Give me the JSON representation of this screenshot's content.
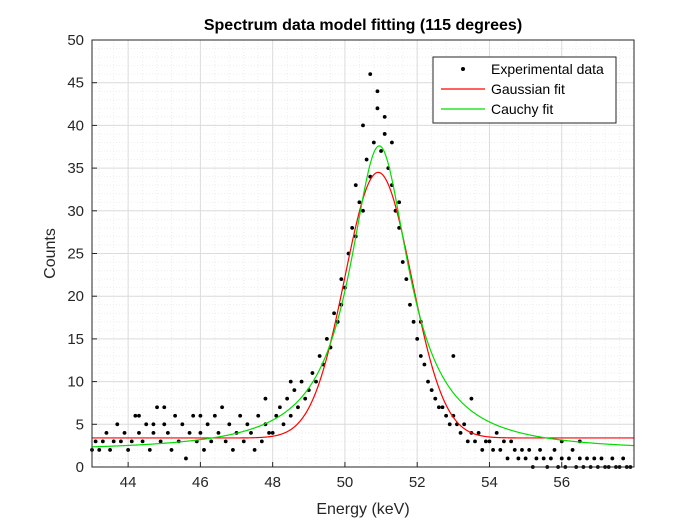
{
  "chart_data": {
    "type": "scatter",
    "title": "Spectrum data model fitting (115 degrees)",
    "xlabel": "Energy (keV)",
    "ylabel": "Counts",
    "xlim": [
      43,
      58
    ],
    "ylim": [
      0,
      50
    ],
    "xticks": [
      44,
      46,
      48,
      50,
      52,
      54,
      56
    ],
    "yticks": [
      0,
      5,
      10,
      15,
      20,
      25,
      30,
      35,
      40,
      45,
      50
    ],
    "grid": true,
    "minor_grid": true,
    "legend_position": "top-right",
    "colors": {
      "experimental": "#000000",
      "gaussian": "#ff0000",
      "cauchy": "#00dd00",
      "grid": "#dcdcdc",
      "axis": "#262626"
    },
    "series": [
      {
        "name": "Experimental data",
        "kind": "points",
        "points": [
          [
            43.0,
            2
          ],
          [
            43.1,
            3
          ],
          [
            43.2,
            2
          ],
          [
            43.3,
            3
          ],
          [
            43.4,
            4
          ],
          [
            43.5,
            2
          ],
          [
            43.6,
            3
          ],
          [
            43.7,
            5
          ],
          [
            43.8,
            3
          ],
          [
            43.9,
            4
          ],
          [
            44.0,
            2
          ],
          [
            44.1,
            3
          ],
          [
            44.2,
            6
          ],
          [
            44.3,
            4
          ],
          [
            44.4,
            3
          ],
          [
            44.5,
            5
          ],
          [
            44.6,
            2
          ],
          [
            44.7,
            4
          ],
          [
            44.8,
            7
          ],
          [
            44.9,
            3
          ],
          [
            45.0,
            5
          ],
          [
            45.1,
            4
          ],
          [
            45.2,
            2
          ],
          [
            45.3,
            6
          ],
          [
            45.4,
            3
          ],
          [
            45.5,
            5
          ],
          [
            45.6,
            1
          ],
          [
            45.7,
            4
          ],
          [
            45.8,
            6
          ],
          [
            45.9,
            3
          ],
          [
            46.0,
            4
          ],
          [
            46.1,
            2
          ],
          [
            46.2,
            5
          ],
          [
            46.3,
            3
          ],
          [
            46.4,
            6
          ],
          [
            46.5,
            4
          ],
          [
            46.6,
            7
          ],
          [
            46.7,
            3
          ],
          [
            46.8,
            5
          ],
          [
            46.9,
            2
          ],
          [
            47.0,
            4
          ],
          [
            47.1,
            6
          ],
          [
            47.2,
            3
          ],
          [
            47.3,
            5
          ],
          [
            47.4,
            4
          ],
          [
            47.5,
            2
          ],
          [
            47.6,
            6
          ],
          [
            47.7,
            3
          ],
          [
            47.8,
            5
          ],
          [
            47.9,
            4
          ],
          [
            48.0,
            4
          ],
          [
            48.1,
            6
          ],
          [
            48.2,
            7
          ],
          [
            48.3,
            5
          ],
          [
            48.4,
            8
          ],
          [
            48.5,
            6
          ],
          [
            48.6,
            9
          ],
          [
            48.7,
            7
          ],
          [
            48.8,
            10
          ],
          [
            48.9,
            8
          ],
          [
            49.0,
            9
          ],
          [
            49.1,
            11
          ],
          [
            49.2,
            10
          ],
          [
            49.3,
            13
          ],
          [
            49.4,
            12
          ],
          [
            49.5,
            15
          ],
          [
            49.6,
            14
          ],
          [
            49.7,
            18
          ],
          [
            49.8,
            17
          ],
          [
            49.9,
            22
          ],
          [
            50.0,
            21
          ],
          [
            50.1,
            25
          ],
          [
            50.2,
            28
          ],
          [
            50.3,
            27
          ],
          [
            50.4,
            31
          ],
          [
            50.5,
            30
          ],
          [
            50.6,
            36
          ],
          [
            50.7,
            34
          ],
          [
            50.8,
            38
          ],
          [
            50.9,
            42
          ],
          [
            51.0,
            37
          ],
          [
            51.1,
            39
          ],
          [
            51.2,
            35
          ],
          [
            51.3,
            33
          ],
          [
            51.4,
            30
          ],
          [
            51.5,
            28
          ],
          [
            51.6,
            24
          ],
          [
            51.7,
            22
          ],
          [
            51.8,
            19
          ],
          [
            51.9,
            17
          ],
          [
            52.0,
            15
          ],
          [
            52.1,
            13
          ],
          [
            52.2,
            12
          ],
          [
            52.3,
            10
          ],
          [
            52.4,
            9
          ],
          [
            52.5,
            8
          ],
          [
            52.6,
            7
          ],
          [
            52.7,
            7
          ],
          [
            52.8,
            6
          ],
          [
            52.9,
            5
          ],
          [
            53.0,
            6
          ],
          [
            53.1,
            5
          ],
          [
            53.2,
            4
          ],
          [
            53.3,
            5
          ],
          [
            53.4,
            3
          ],
          [
            53.5,
            4
          ],
          [
            53.6,
            3
          ],
          [
            53.7,
            4
          ],
          [
            53.8,
            2
          ],
          [
            53.9,
            3
          ],
          [
            54.0,
            3
          ],
          [
            54.1,
            2
          ],
          [
            54.2,
            4
          ],
          [
            54.3,
            2
          ],
          [
            54.4,
            3
          ],
          [
            54.5,
            1
          ],
          [
            54.6,
            3
          ],
          [
            54.7,
            2
          ],
          [
            54.8,
            1
          ],
          [
            54.9,
            2
          ],
          [
            55.0,
            1
          ],
          [
            55.1,
            2
          ],
          [
            55.2,
            0
          ],
          [
            55.3,
            1
          ],
          [
            55.4,
            2
          ],
          [
            55.5,
            1
          ],
          [
            55.6,
            0
          ],
          [
            55.7,
            1
          ],
          [
            55.8,
            2
          ],
          [
            55.9,
            0
          ],
          [
            56.0,
            1
          ],
          [
            56.1,
            0
          ],
          [
            56.2,
            1
          ],
          [
            56.3,
            2
          ],
          [
            56.4,
            0
          ],
          [
            56.5,
            1
          ],
          [
            56.6,
            0
          ],
          [
            56.7,
            1
          ],
          [
            56.8,
            0
          ],
          [
            56.9,
            1
          ],
          [
            57.0,
            0
          ],
          [
            57.1,
            1
          ],
          [
            57.2,
            0
          ],
          [
            57.3,
            0
          ],
          [
            57.4,
            1
          ],
          [
            57.5,
            0
          ],
          [
            57.6,
            0
          ],
          [
            57.7,
            1
          ],
          [
            57.8,
            0
          ],
          [
            57.9,
            0
          ],
          [
            50.7,
            46
          ],
          [
            50.9,
            44
          ],
          [
            51.1,
            41
          ],
          [
            50.5,
            40
          ],
          [
            51.3,
            38
          ],
          [
            50.3,
            33
          ],
          [
            51.5,
            31
          ],
          [
            49.9,
            19
          ],
          [
            52.1,
            17
          ],
          [
            48.5,
            10
          ],
          [
            53.0,
            13
          ],
          [
            47.8,
            8
          ],
          [
            46.0,
            6
          ],
          [
            45.0,
            7
          ],
          [
            44.3,
            6
          ],
          [
            44.7,
            5
          ],
          [
            56.0,
            3
          ],
          [
            56.5,
            3
          ],
          [
            53.5,
            8
          ]
        ]
      },
      {
        "name": "Gaussian fit",
        "kind": "curve",
        "model": "gaussian",
        "params": {
          "amplitude": 31.1,
          "center": 50.92,
          "sigma": 0.92,
          "offset": 3.4
        }
      },
      {
        "name": "Cauchy fit",
        "kind": "curve",
        "model": "cauchy",
        "params": {
          "amplitude": 35.8,
          "center": 50.95,
          "gamma": 1.0,
          "offset": 1.8
        }
      }
    ]
  }
}
